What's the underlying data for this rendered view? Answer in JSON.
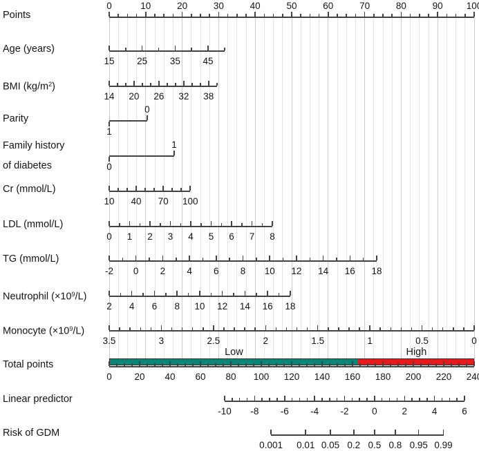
{
  "chart_data": {
    "type": "nomogram",
    "colors": {
      "axis": "#424242",
      "text": "#141414",
      "grid_minor": "#e6e6e6",
      "grid_major": "#cccccc",
      "low_band": "#0c8577",
      "high_band": "#e41a1c"
    },
    "unit_scale": {
      "id": "points",
      "label_parts": [
        [
          "t",
          "Points"
        ]
      ],
      "min": 0,
      "max": 100,
      "pu_start": 0,
      "pu_end": 100,
      "minor_step": 2.5,
      "labels": [
        {
          "v": 0,
          "t": "0"
        },
        {
          "v": 10,
          "t": "10"
        },
        {
          "v": 20,
          "t": "20"
        },
        {
          "v": 30,
          "t": "30"
        },
        {
          "v": 40,
          "t": "40"
        },
        {
          "v": 50,
          "t": "50"
        },
        {
          "v": 60,
          "t": "60"
        },
        {
          "v": 70,
          "t": "70"
        },
        {
          "v": 80,
          "t": "80"
        },
        {
          "v": 90,
          "t": "90"
        },
        {
          "v": 100,
          "t": "100"
        }
      ]
    },
    "rows": [
      {
        "id": "age",
        "label_parts": [
          [
            "t",
            "Age (years)"
          ]
        ],
        "min": 15,
        "max": 50,
        "pu_start": 0,
        "pu_end": 31.6,
        "minor_step": 5,
        "labels": [
          {
            "v": 15,
            "t": "15"
          },
          {
            "v": 25,
            "t": "25"
          },
          {
            "v": 35,
            "t": "35"
          },
          {
            "v": 45,
            "t": "45"
          }
        ]
      },
      {
        "id": "bmi",
        "label_parts": [
          [
            "t",
            "BMI (kg/m"
          ],
          [
            "s",
            "2"
          ],
          [
            "t",
            ")"
          ]
        ],
        "min": 14,
        "max": 40,
        "pu_start": 0,
        "pu_end": 29.5,
        "minor_step": 2,
        "labels": [
          {
            "v": 14,
            "t": "14"
          },
          {
            "v": 20,
            "t": "20"
          },
          {
            "v": 26,
            "t": "26"
          },
          {
            "v": 32,
            "t": "32"
          },
          {
            "v": 38,
            "t": "38"
          }
        ]
      },
      {
        "id": "parity",
        "label_parts": [
          [
            "t",
            "Parity"
          ]
        ],
        "kind": "binary",
        "levels": [
          {
            "t": "1",
            "pu": 0,
            "side": "below"
          },
          {
            "t": "0",
            "pu": 10.4,
            "side": "above"
          }
        ]
      },
      {
        "id": "famhx",
        "label_parts": [
          [
            "t",
            "Family history"
          ]
        ],
        "label_parts2": [
          [
            "t",
            "of diabetes"
          ]
        ],
        "kind": "binary",
        "levels": [
          {
            "t": "0",
            "pu": 0,
            "side": "below"
          },
          {
            "t": "1",
            "pu": 17.8,
            "side": "above"
          }
        ]
      },
      {
        "id": "cr",
        "label_parts": [
          [
            "t",
            "Cr (mmol/L)"
          ]
        ],
        "min": 10,
        "max": 100,
        "pu_start": 0,
        "pu_end": 22.2,
        "minor_step": 10,
        "labels": [
          {
            "v": 10,
            "t": "10"
          },
          {
            "v": 40,
            "t": "40"
          },
          {
            "v": 70,
            "t": "70"
          },
          {
            "v": 100,
            "t": "100"
          }
        ]
      },
      {
        "id": "ldl",
        "label_parts": [
          [
            "t",
            "LDL (mmol/L)"
          ]
        ],
        "min": 0,
        "max": 8,
        "pu_start": 0,
        "pu_end": 44.7,
        "minor_step": 0.5,
        "labels": [
          {
            "v": 0,
            "t": "0"
          },
          {
            "v": 1,
            "t": "1"
          },
          {
            "v": 2,
            "t": "2"
          },
          {
            "v": 3,
            "t": "3"
          },
          {
            "v": 4,
            "t": "4"
          },
          {
            "v": 5,
            "t": "5"
          },
          {
            "v": 6,
            "t": "6"
          },
          {
            "v": 7,
            "t": "7"
          },
          {
            "v": 8,
            "t": "8"
          }
        ]
      },
      {
        "id": "tg",
        "label_parts": [
          [
            "t",
            "TG (mmol/L)"
          ]
        ],
        "min": -2,
        "max": 18,
        "pu_start": 0,
        "pu_end": 73.3,
        "minor_step": 1,
        "labels": [
          {
            "v": -2,
            "t": "-2"
          },
          {
            "v": 0,
            "t": "0"
          },
          {
            "v": 2,
            "t": "2"
          },
          {
            "v": 4,
            "t": "4"
          },
          {
            "v": 6,
            "t": "6"
          },
          {
            "v": 8,
            "t": "8"
          },
          {
            "v": 10,
            "t": "10"
          },
          {
            "v": 12,
            "t": "12"
          },
          {
            "v": 14,
            "t": "14"
          },
          {
            "v": 16,
            "t": "16"
          },
          {
            "v": 18,
            "t": "18"
          }
        ]
      },
      {
        "id": "neutrophil",
        "label_parts": [
          [
            "t",
            "Neutrophil (×10"
          ],
          [
            "s",
            "9"
          ],
          [
            "t",
            "/L)"
          ]
        ],
        "min": 2,
        "max": 18,
        "pu_start": 0,
        "pu_end": 49.6,
        "minor_step": 1,
        "labels": [
          {
            "v": 2,
            "t": "2"
          },
          {
            "v": 4,
            "t": "4"
          },
          {
            "v": 6,
            "t": "6"
          },
          {
            "v": 8,
            "t": "8"
          },
          {
            "v": 10,
            "t": "10"
          },
          {
            "v": 12,
            "t": "12"
          },
          {
            "v": 14,
            "t": "14"
          },
          {
            "v": 16,
            "t": "16"
          },
          {
            "v": 18,
            "t": "18"
          }
        ]
      },
      {
        "id": "monocyte",
        "label_parts": [
          [
            "t",
            "Monocyte (×10"
          ],
          [
            "s",
            "9"
          ],
          [
            "t",
            "/L)"
          ]
        ],
        "min": 3.5,
        "max": 0,
        "pu_start": 0,
        "pu_end": 100,
        "minor_step": 0.1,
        "labels": [
          {
            "v": 3.5,
            "t": "3.5"
          },
          {
            "v": 3,
            "t": "3"
          },
          {
            "v": 2.5,
            "t": "2.5"
          },
          {
            "v": 2,
            "t": "2"
          },
          {
            "v": 1.5,
            "t": "1.5"
          },
          {
            "v": 1,
            "t": "1"
          },
          {
            "v": 0.5,
            "t": "0.5"
          },
          {
            "v": 0,
            "t": "0"
          }
        ]
      }
    ],
    "total_points": {
      "id": "total",
      "label_parts": [
        [
          "t",
          "Total points"
        ]
      ],
      "min": 0,
      "max": 240,
      "pu_start": 0,
      "pu_end": 100,
      "minor_step": 5,
      "labels": [
        {
          "v": 0,
          "t": "0"
        },
        {
          "v": 20,
          "t": "20"
        },
        {
          "v": 40,
          "t": "40"
        },
        {
          "v": 60,
          "t": "60"
        },
        {
          "v": 80,
          "t": "80"
        },
        {
          "v": 100,
          "t": "100"
        },
        {
          "v": 120,
          "t": "120"
        },
        {
          "v": 140,
          "t": "140"
        },
        {
          "v": 160,
          "t": "160"
        },
        {
          "v": 180,
          "t": "180"
        },
        {
          "v": 200,
          "t": "200"
        },
        {
          "v": 220,
          "t": "220"
        },
        {
          "v": 240,
          "t": "240"
        }
      ],
      "risk_band": {
        "low_label": "Low",
        "high_label": "High",
        "boundary_points": 164
      }
    },
    "linear_predictor": {
      "id": "lp",
      "label_parts": [
        [
          "t",
          "Linear predictor"
        ]
      ],
      "min": -10,
      "max": 6,
      "pu_start": 31.63,
      "pu_end": 97.35,
      "minor_step": 0.5,
      "labels": [
        {
          "v": -10,
          "t": "-10"
        },
        {
          "v": -8,
          "t": "-8"
        },
        {
          "v": -6,
          "t": "-6"
        },
        {
          "v": -4,
          "t": "-4"
        },
        {
          "v": -2,
          "t": "-2"
        },
        {
          "v": 0,
          "t": "0"
        },
        {
          "v": 2,
          "t": "2"
        },
        {
          "v": 4,
          "t": "4"
        },
        {
          "v": 6,
          "t": "6"
        }
      ]
    },
    "risk": {
      "id": "risk",
      "label_parts": [
        [
          "t",
          "Risk of GDM"
        ]
      ],
      "maps_via": "linear_predictor",
      "ticks": [
        {
          "p": 0.001,
          "t": "0.001"
        },
        {
          "p": 0.01,
          "t": "0.01"
        },
        {
          "p": 0.05,
          "t": "0.05"
        },
        {
          "p": 0.2,
          "t": "0.2"
        },
        {
          "p": 0.5,
          "t": "0.5"
        },
        {
          "p": 0.8,
          "t": "0.8"
        },
        {
          "p": 0.95,
          "t": "0.95"
        },
        {
          "p": 0.99,
          "t": "0.99"
        }
      ]
    }
  }
}
